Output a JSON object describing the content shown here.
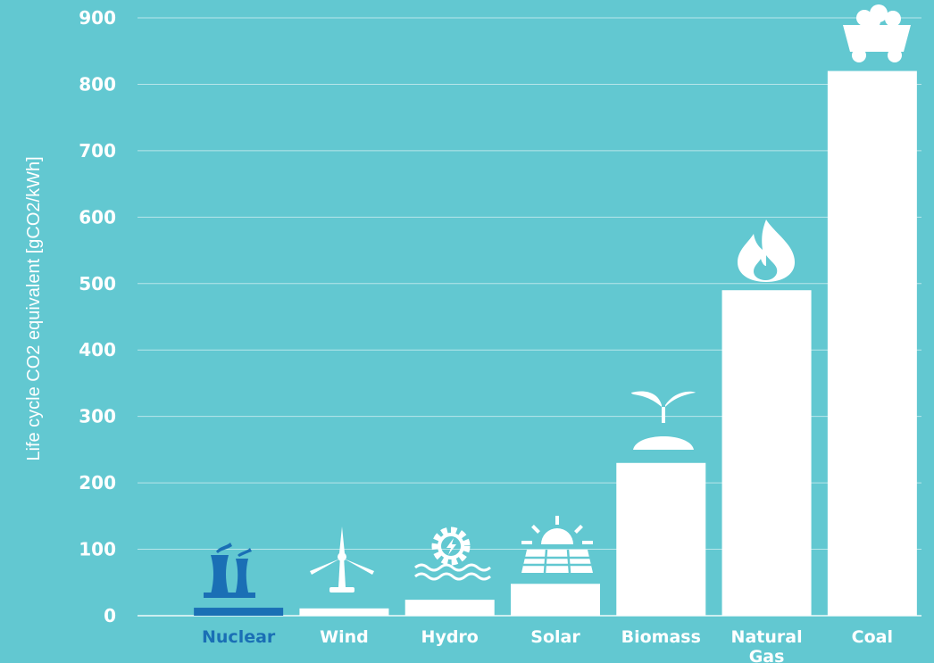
{
  "chart_data": {
    "type": "bar",
    "title": "",
    "ylabel": "Life cycle CO2 equivalent [gCO2/kWh]",
    "xlabel": "",
    "ylim": [
      0,
      900
    ],
    "yticks": [
      "0",
      "100",
      "200",
      "300",
      "400",
      "500",
      "600",
      "700",
      "800",
      "900"
    ],
    "grid": true,
    "categories": [
      "Nuclear",
      "Wind",
      "Hydro",
      "Solar",
      "Biomass",
      "Natural Gas",
      "Coal"
    ],
    "category_lines": [
      [
        "Nuclear"
      ],
      [
        "Wind"
      ],
      [
        "Hydro"
      ],
      [
        "Solar"
      ],
      [
        "Biomass"
      ],
      [
        "Natural",
        "Gas"
      ],
      [
        "Coal"
      ]
    ],
    "values": [
      12,
      11,
      24,
      48,
      230,
      490,
      820
    ],
    "highlight_category": "Nuclear",
    "icons": [
      "cooling-tower-icon",
      "wind-turbine-icon",
      "hydro-gear-icon",
      "solar-panel-icon",
      "sprout-icon",
      "flame-icon",
      "coal-cart-icon"
    ],
    "colors": {
      "background": "#62c8d1",
      "bar": "#ffffff",
      "highlight": "#1a6fb5",
      "grid": "#ffffff",
      "text": "#ffffff"
    }
  }
}
